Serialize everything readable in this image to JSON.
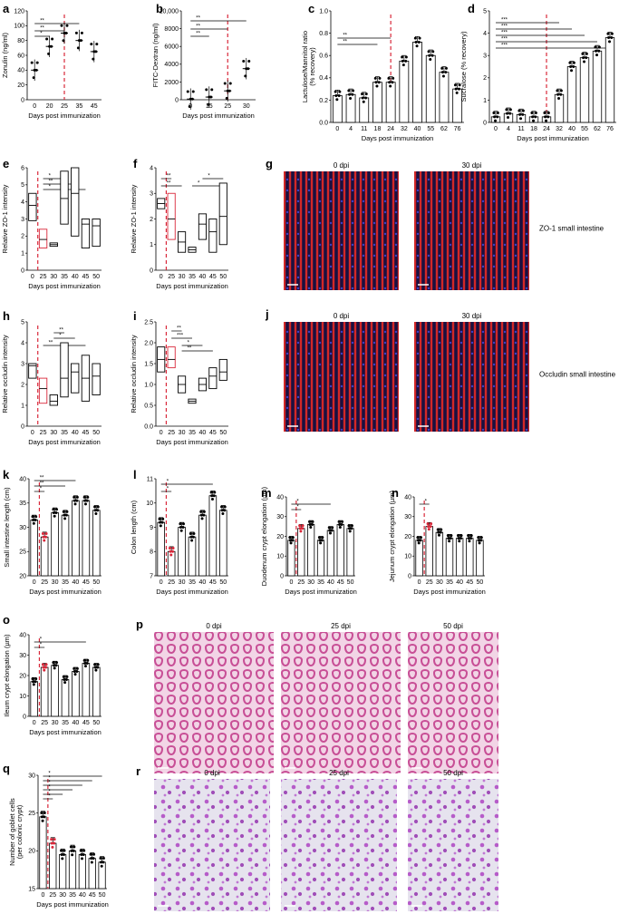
{
  "panels": {
    "a": {
      "label": "a",
      "ylabel": "Zonulin (ng/ml)",
      "xlabel": "Days post immunization",
      "yticks": [
        "0",
        "20",
        "40",
        "60",
        "80",
        "100",
        "120"
      ],
      "xticks": [
        "0",
        "20",
        "25",
        "35",
        "45"
      ],
      "stars": [
        "*",
        "**",
        "**"
      ]
    },
    "b": {
      "label": "b",
      "ylabel": "FITC-Dextran (ng/ml)",
      "xlabel": "Days post immunization",
      "yticks": [
        "0",
        "2000",
        "4000",
        "6000",
        "8000",
        "10,000"
      ],
      "xticks": [
        "0",
        "15",
        "25",
        "30"
      ],
      "stars": [
        "**",
        "**",
        "**"
      ]
    },
    "c": {
      "label": "c",
      "ylabel": "Lactulose/Mannitol ratio (% recovery)",
      "ylabel_lines": [
        "Lactulose/Mannitol ratio",
        "(% recovery)"
      ],
      "xlabel": "Days post immunization",
      "yticks": [
        "0.0",
        "0.2",
        "0.4",
        "0.6",
        "0.8",
        "1.0"
      ],
      "xticks": [
        "0",
        "4",
        "11",
        "18",
        "24",
        "32",
        "40",
        "55",
        "62",
        "76"
      ],
      "stars": [
        "**",
        "**"
      ]
    },
    "d": {
      "label": "d",
      "ylabel": "Sucralose (% recovery)",
      "xlabel": "Days post immunization",
      "yticks": [
        "0",
        "1",
        "2",
        "3",
        "4",
        "5"
      ],
      "xticks": [
        "0",
        "4",
        "11",
        "18",
        "24",
        "32",
        "40",
        "55",
        "62",
        "76"
      ],
      "stars": [
        "***",
        "***",
        "***",
        "***",
        "***"
      ]
    },
    "e": {
      "label": "e",
      "ylabel": "Relative ZO-1 intensity",
      "xlabel": "Days post immunization",
      "yticks": [
        "0",
        "1",
        "2",
        "3",
        "4",
        "5",
        "6"
      ],
      "xticks": [
        "0",
        "25",
        "30",
        "35",
        "40",
        "45",
        "50"
      ],
      "stars": [
        "*",
        "**",
        "*"
      ]
    },
    "f": {
      "label": "f",
      "ylabel": "Relative ZO-1 intensity",
      "xlabel": "Days post immunization",
      "yticks": [
        "0",
        "1",
        "2",
        "3",
        "4"
      ],
      "xticks": [
        "0",
        "25",
        "30",
        "35",
        "40",
        "45",
        "50"
      ],
      "stars": [
        "**",
        "**",
        "*",
        "*"
      ]
    },
    "g": {
      "label": "g",
      "left": "0 dpi",
      "right": "30 dpi",
      "caption": "ZO-1 small intestine"
    },
    "h": {
      "label": "h",
      "ylabel": "Relative occludin intensity",
      "xlabel": "Days post immunization",
      "yticks": [
        "0",
        "1",
        "2",
        "3",
        "4",
        "5"
      ],
      "xticks": [
        "0",
        "25",
        "30",
        "35",
        "40",
        "45",
        "50"
      ],
      "stars": [
        "**",
        "*",
        "**"
      ]
    },
    "i": {
      "label": "i",
      "ylabel": "Relative occludin intensity",
      "xlabel": "Days post immunization",
      "yticks": [
        "0.0",
        "0.5",
        "1.0",
        "1.5",
        "2.0",
        "2.5"
      ],
      "xticks": [
        "0",
        "25",
        "30",
        "35",
        "40",
        "45",
        "50"
      ],
      "stars": [
        "**",
        "***",
        "*",
        "**"
      ]
    },
    "j": {
      "label": "j",
      "left": "0 dpi",
      "right": "30 dpi",
      "caption": "Occludin small intestine"
    },
    "k": {
      "label": "k",
      "ylabel": "Small intestine length (cm)",
      "xlabel": "Days post immunization",
      "yticks": [
        "20",
        "25",
        "30",
        "35",
        "40"
      ],
      "xticks": [
        "0",
        "25",
        "30",
        "35",
        "40",
        "45",
        "50"
      ],
      "stars": [
        "*",
        "**",
        "**"
      ]
    },
    "l": {
      "label": "l",
      "ylabel": "Colon length (cm)",
      "xlabel": "Days post immunization",
      "yticks": [
        "7",
        "8",
        "9",
        "10",
        "11"
      ],
      "xticks": [
        "0",
        "25",
        "30",
        "35",
        "40",
        "45",
        "50"
      ],
      "stars": [
        "*",
        "*"
      ]
    },
    "m": {
      "label": "m",
      "ylabel": "Duodenum crypt elongation (µm)",
      "xlabel": "Days post immunization",
      "yticks": [
        "0",
        "10",
        "20",
        "30",
        "40"
      ],
      "xticks": [
        "0",
        "25",
        "30",
        "35",
        "40",
        "45",
        "50"
      ],
      "stars": [
        "*",
        "*"
      ]
    },
    "n": {
      "label": "n",
      "ylabel": "Jejunum crypt elongation (µm)",
      "xlabel": "Days post immunization",
      "yticks": [
        "0",
        "10",
        "20",
        "30",
        "40"
      ],
      "xticks": [
        "0",
        "25",
        "30",
        "35",
        "40",
        "45",
        "50"
      ],
      "stars": [
        "*"
      ]
    },
    "o": {
      "label": "o",
      "ylabel": "Ileum crypt elongation (µm)",
      "xlabel": "Days post immunization",
      "yticks": [
        "0",
        "10",
        "20",
        "30",
        "40"
      ],
      "xticks": [
        "0",
        "25",
        "30",
        "35",
        "40",
        "45",
        "50"
      ],
      "stars": [
        "*",
        "*"
      ]
    },
    "p": {
      "label": "p",
      "left": "0 dpi",
      "mid": "25 dpi",
      "right": "50 dpi"
    },
    "q": {
      "label": "q",
      "ylabel": "Number of goblet cells (per colonic crypt)",
      "ylabel_lines": [
        "Number of goblet cells",
        "(per colonic crypt)"
      ],
      "xlabel": "Days post immunization",
      "yticks": [
        "15",
        "20",
        "25",
        "30"
      ],
      "xticks": [
        "0",
        "25",
        "30",
        "35",
        "40",
        "45",
        "50"
      ],
      "stars": [
        "*",
        "*",
        "*",
        "*",
        "*",
        "*"
      ]
    },
    "r": {
      "label": "r",
      "left": "0 dpi",
      "mid": "25 dpi",
      "right": "50 dpi"
    }
  },
  "chart_data": [
    {
      "panel": "a",
      "type": "scatter",
      "x": [
        "0",
        "20",
        "25",
        "35",
        "45"
      ],
      "values": [
        40,
        72,
        90,
        80,
        65
      ],
      "ylim": [
        0,
        120
      ]
    },
    {
      "panel": "b",
      "type": "scatter",
      "x": [
        "0",
        "15",
        "25",
        "30"
      ],
      "values": [
        80,
        300,
        1000,
        3500
      ],
      "ylim": [
        0,
        10000
      ]
    },
    {
      "panel": "c",
      "type": "bar",
      "categories": [
        "0",
        "4",
        "11",
        "18",
        "24",
        "32",
        "40",
        "55",
        "62",
        "76"
      ],
      "values": [
        0.24,
        0.25,
        0.22,
        0.36,
        0.36,
        0.55,
        0.72,
        0.6,
        0.45,
        0.3
      ],
      "ylim": [
        0,
        1.0
      ]
    },
    {
      "panel": "d",
      "type": "bar",
      "categories": [
        "0",
        "4",
        "11",
        "18",
        "24",
        "32",
        "40",
        "55",
        "62",
        "76"
      ],
      "values": [
        0.25,
        0.4,
        0.35,
        0.25,
        0.25,
        1.25,
        2.5,
        2.9,
        3.2,
        3.8
      ],
      "ylim": [
        0,
        5
      ]
    },
    {
      "panel": "e",
      "type": "box",
      "categories": [
        "0",
        "25",
        "30",
        "35",
        "40",
        "45",
        "50"
      ],
      "low": [
        2.9,
        1.3,
        1.4,
        2.7,
        2.0,
        1.3,
        1.4
      ],
      "mid": [
        3.8,
        1.8,
        1.5,
        4.2,
        4.5,
        2.7,
        2.6
      ],
      "high": [
        4.5,
        2.4,
        1.6,
        5.8,
        6.0,
        3.0,
        3.0
      ],
      "ylim": [
        0,
        6
      ]
    },
    {
      "panel": "f",
      "type": "box",
      "categories": [
        "0",
        "25",
        "30",
        "35",
        "40",
        "45",
        "50"
      ],
      "low": [
        2.4,
        1.2,
        0.7,
        0.7,
        1.2,
        0.7,
        1.0
      ],
      "mid": [
        2.6,
        2.0,
        1.1,
        0.8,
        1.8,
        1.5,
        2.1
      ],
      "high": [
        2.8,
        3.0,
        1.5,
        0.9,
        2.2,
        2.0,
        3.4
      ],
      "ylim": [
        0,
        4
      ]
    },
    {
      "panel": "h",
      "type": "box",
      "categories": [
        "0",
        "25",
        "30",
        "35",
        "40",
        "45",
        "50"
      ],
      "low": [
        2.3,
        1.1,
        1.0,
        1.4,
        1.6,
        1.2,
        1.5
      ],
      "mid": [
        2.9,
        1.8,
        1.2,
        2.3,
        2.6,
        2.3,
        2.4
      ],
      "high": [
        3.0,
        2.3,
        1.5,
        4.0,
        3.0,
        3.4,
        3.0
      ],
      "ylim": [
        0,
        5
      ]
    },
    {
      "panel": "i",
      "type": "box",
      "categories": [
        "0",
        "25",
        "30",
        "35",
        "40",
        "45",
        "50"
      ],
      "low": [
        1.3,
        1.4,
        0.8,
        0.55,
        0.85,
        0.9,
        1.1
      ],
      "mid": [
        1.6,
        1.6,
        1.0,
        0.6,
        1.0,
        1.2,
        1.3
      ],
      "high": [
        1.9,
        1.9,
        1.2,
        0.65,
        1.15,
        1.4,
        1.6
      ],
      "ylim": [
        0,
        2.5
      ]
    },
    {
      "panel": "k",
      "type": "bar",
      "categories": [
        "0",
        "25",
        "30",
        "35",
        "40",
        "45",
        "50"
      ],
      "values": [
        31.5,
        28.0,
        33.0,
        32.5,
        35.5,
        35.5,
        33.5
      ],
      "ylim": [
        20,
        40
      ]
    },
    {
      "panel": "l",
      "type": "bar",
      "categories": [
        "0",
        "25",
        "30",
        "35",
        "40",
        "45",
        "50"
      ],
      "values": [
        9.2,
        8.0,
        9.0,
        8.6,
        9.5,
        10.3,
        9.7
      ],
      "ylim": [
        7,
        11
      ]
    },
    {
      "panel": "m",
      "type": "bar",
      "categories": [
        "0",
        "25",
        "30",
        "35",
        "40",
        "45",
        "50"
      ],
      "values": [
        18,
        24,
        26,
        18,
        23,
        26,
        24
      ],
      "ylim": [
        0,
        40
      ]
    },
    {
      "panel": "n",
      "type": "bar",
      "categories": [
        "0",
        "25",
        "30",
        "35",
        "40",
        "45",
        "50"
      ],
      "values": [
        18,
        25,
        22,
        19,
        19,
        19,
        18
      ],
      "ylim": [
        0,
        40
      ]
    },
    {
      "panel": "o",
      "type": "bar",
      "categories": [
        "0",
        "25",
        "30",
        "35",
        "40",
        "45",
        "50"
      ],
      "values": [
        17,
        24,
        25,
        18,
        22,
        26,
        24
      ],
      "ylim": [
        0,
        40
      ]
    },
    {
      "panel": "q",
      "type": "bar",
      "categories": [
        "0",
        "25",
        "30",
        "35",
        "40",
        "45",
        "50"
      ],
      "values": [
        24.5,
        21.0,
        19.5,
        20.0,
        19.5,
        19.0,
        18.5
      ],
      "ylim": [
        15,
        30
      ]
    }
  ],
  "colors": {
    "dashed_line": "#d9283a",
    "bar_fill": "#ffffff",
    "axis": "#000000",
    "he_stain": "#d66fa8",
    "pas_stain": "#b15fc4",
    "if_red": "#cc1f1f",
    "if_blue": "#2c2ca0"
  }
}
